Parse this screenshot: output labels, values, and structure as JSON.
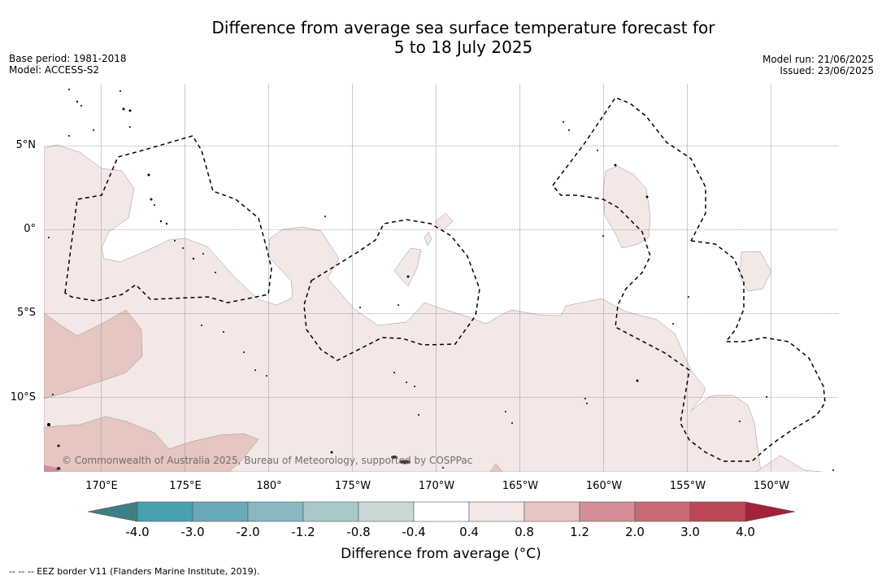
{
  "title_line1": "Difference from average sea surface temperature forecast for",
  "title_line2": "5 to 18 July 2025",
  "base_period": "Base period: 1981-2018",
  "model": "Model: ACCESS-S2",
  "model_run": "Model run: 21/06/2025",
  "issued": "Issued: 23/06/2025",
  "copyright": "© Commonwealth of Australia 2025, Bureau of Meteorology, supported by COSPPac",
  "footnote": "--  --  -- EEZ border V11 (Flanders Marine Institute, 2019).",
  "colorbar": {
    "label": "Difference from average (°C)",
    "ticks": [
      "-4.0",
      "-3.0",
      "-2.0",
      "-1.2",
      "-0.8",
      "-0.4",
      "0.4",
      "0.8",
      "1.2",
      "2.0",
      "3.0",
      "4.0"
    ],
    "colors": [
      "#4a9fb2",
      "#6aa9b9",
      "#89b7c2",
      "#a9c8cb",
      "#cbd8d8",
      "#ffffff",
      "#f4e8e6",
      "#e5c6c0",
      "#d38f95",
      "#c86a74",
      "#bd4756"
    ],
    "extend_low_color": "#3f7e86",
    "extend_high_color": "#a5203b"
  },
  "map": {
    "lat_labels": [
      "5°N",
      "0°",
      "5°S",
      "10°S"
    ],
    "lon_labels": [
      "170°E",
      "175°E",
      "180°",
      "175°W",
      "170°W",
      "165°W",
      "160°W",
      "155°W",
      "150°W"
    ],
    "anomaly_fill_colors": {
      "light_warm": "#f4e8e6",
      "moderate_warm": "#e5c6c0",
      "strong_warm": "#d38f95"
    }
  }
}
